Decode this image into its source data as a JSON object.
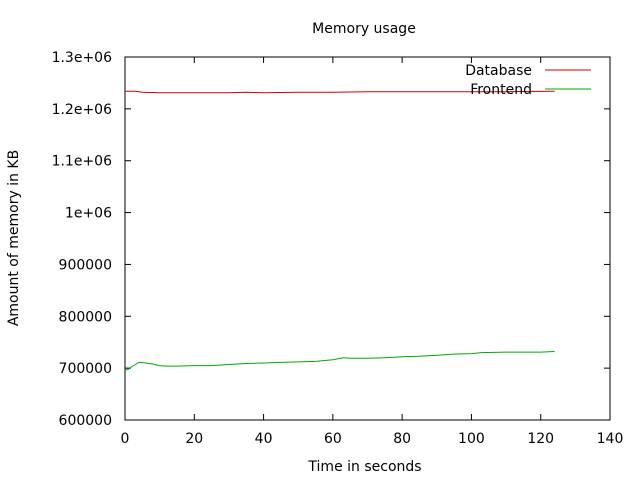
{
  "chart_data": {
    "type": "line",
    "title": "Memory usage",
    "xlabel": "Time in seconds",
    "ylabel": "Amount of memory in KB",
    "xlim": [
      0,
      140
    ],
    "ylim": [
      600000,
      1300000
    ],
    "x_ticks": [
      0,
      20,
      40,
      60,
      80,
      100,
      120,
      140
    ],
    "x_tick_labels": [
      "0",
      "20",
      "40",
      "60",
      "80",
      "100",
      "120",
      "140"
    ],
    "y_ticks": [
      600000,
      700000,
      800000,
      900000,
      1000000,
      1100000,
      1200000,
      1300000
    ],
    "y_tick_labels": [
      "600000",
      "700000",
      "800000",
      "900000",
      "1e+06",
      "1.1e+06",
      "1.2e+06",
      "1.3e+06"
    ],
    "grid": false,
    "legend_position": "top-right",
    "series": [
      {
        "name": "Database",
        "color": "#cc0000",
        "points": [
          [
            0,
            1234000
          ],
          [
            3,
            1234000
          ],
          [
            5,
            1232000
          ],
          [
            10,
            1231000
          ],
          [
            20,
            1231000
          ],
          [
            30,
            1231000
          ],
          [
            35,
            1232000
          ],
          [
            40,
            1231000
          ],
          [
            50,
            1232000
          ],
          [
            60,
            1232000
          ],
          [
            70,
            1233000
          ],
          [
            80,
            1233000
          ],
          [
            90,
            1233000
          ],
          [
            100,
            1233000
          ],
          [
            110,
            1233000
          ],
          [
            124,
            1234000
          ]
        ]
      },
      {
        "name": "Frontend",
        "color": "#00aa00",
        "points": [
          [
            0,
            696000
          ],
          [
            1,
            698000
          ],
          [
            2,
            703000
          ],
          [
            3,
            707000
          ],
          [
            4,
            711000
          ],
          [
            6,
            710000
          ],
          [
            8,
            708000
          ],
          [
            10,
            705000
          ],
          [
            12,
            704000
          ],
          [
            15,
            704000
          ],
          [
            20,
            705000
          ],
          [
            25,
            705000
          ],
          [
            30,
            707000
          ],
          [
            35,
            709000
          ],
          [
            40,
            710000
          ],
          [
            45,
            711000
          ],
          [
            50,
            712000
          ],
          [
            55,
            713000
          ],
          [
            60,
            716000
          ],
          [
            63,
            720000
          ],
          [
            65,
            719000
          ],
          [
            70,
            719000
          ],
          [
            75,
            720000
          ],
          [
            80,
            722000
          ],
          [
            85,
            723000
          ],
          [
            90,
            725000
          ],
          [
            95,
            727000
          ],
          [
            100,
            728000
          ],
          [
            103,
            730000
          ],
          [
            110,
            731000
          ],
          [
            115,
            731000
          ],
          [
            120,
            731000
          ],
          [
            124,
            732000
          ]
        ]
      }
    ]
  }
}
